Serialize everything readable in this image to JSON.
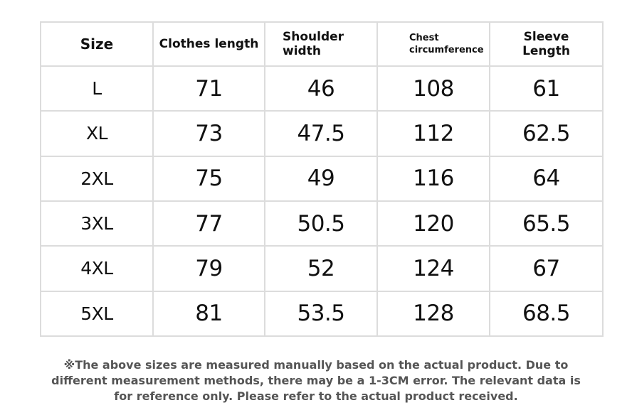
{
  "table": {
    "headers": [
      {
        "lines": [
          "Size"
        ]
      },
      {
        "lines": [
          "Clothes length"
        ]
      },
      {
        "lines": [
          "Shoulder",
          "width"
        ]
      },
      {
        "lines": [
          "Chest",
          "circumference"
        ]
      },
      {
        "lines": [
          "Sleeve",
          "Length"
        ]
      }
    ],
    "rows": [
      {
        "size": "L",
        "clothes_length": "71",
        "shoulder_width": "46",
        "chest": "108",
        "sleeve": "61"
      },
      {
        "size": "XL",
        "clothes_length": "73",
        "shoulder_width": "47.5",
        "chest": "112",
        "sleeve": "62.5"
      },
      {
        "size": "2XL",
        "clothes_length": "75",
        "shoulder_width": "49",
        "chest": "116",
        "sleeve": "64"
      },
      {
        "size": "3XL",
        "clothes_length": "77",
        "shoulder_width": "50.5",
        "chest": "120",
        "sleeve": "65.5"
      },
      {
        "size": "4XL",
        "clothes_length": "79",
        "shoulder_width": "52",
        "chest": "124",
        "sleeve": "67"
      },
      {
        "size": "5XL",
        "clothes_length": "81",
        "shoulder_width": "53.5",
        "chest": "128",
        "sleeve": "68.5"
      }
    ]
  },
  "note": {
    "lines": [
      "※The above sizes are measured manually based on the actual product. Due to",
      "different measurement methods, there may be a 1-3CM error. The relevant data is",
      "for reference only. Please refer to the actual product received."
    ]
  },
  "colors": {
    "border": "#dcdcdc",
    "text": "#111111",
    "note_text": "#555555"
  }
}
